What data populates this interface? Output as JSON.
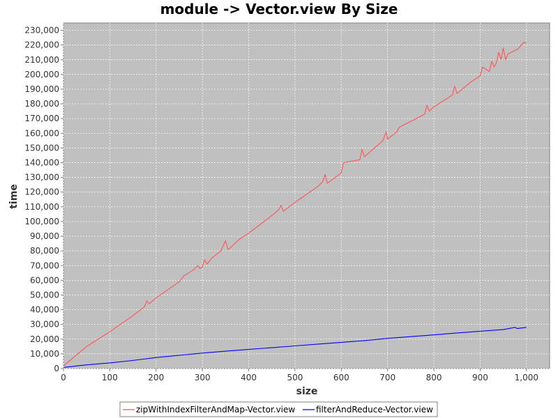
{
  "chart_data": {
    "type": "line",
    "title": "module -> Vector.view By Size",
    "xlabel": "size",
    "ylabel": "time",
    "xlim": [
      0,
      1050
    ],
    "ylim": [
      0,
      235000
    ],
    "x_ticks": [
      0,
      100,
      200,
      300,
      400,
      500,
      600,
      700,
      800,
      900,
      1000
    ],
    "x_tick_labels": [
      "0",
      "100",
      "200",
      "300",
      "400",
      "500",
      "600",
      "700",
      "800",
      "900",
      "1,000"
    ],
    "y_ticks": [
      0,
      10000,
      20000,
      30000,
      40000,
      50000,
      60000,
      70000,
      80000,
      90000,
      100000,
      110000,
      120000,
      130000,
      140000,
      150000,
      160000,
      170000,
      180000,
      190000,
      200000,
      210000,
      220000,
      230000
    ],
    "y_tick_labels": [
      "0",
      "10,000",
      "20,000",
      "30,000",
      "40,000",
      "50,000",
      "60,000",
      "70,000",
      "80,000",
      "90,000",
      "100,000",
      "110,000",
      "120,000",
      "130,000",
      "140,000",
      "150,000",
      "160,000",
      "170,000",
      "180,000",
      "190,000",
      "200,000",
      "210,000",
      "220,000",
      "230,000"
    ],
    "grid": true,
    "legend_position": "bottom",
    "plot_background": "#c0c0c0",
    "series": [
      {
        "name": "zipWithIndexFilterAndMap-Vector.view",
        "color": "#ff5555",
        "x": [
          1,
          50,
          100,
          150,
          175,
          180,
          185,
          200,
          250,
          260,
          270,
          280,
          290,
          295,
          300,
          305,
          310,
          320,
          340,
          350,
          355,
          360,
          380,
          400,
          450,
          465,
          470,
          475,
          500,
          550,
          560,
          565,
          570,
          600,
          605,
          640,
          645,
          650,
          690,
          697,
          700,
          720,
          725,
          780,
          785,
          790,
          800,
          840,
          845,
          850,
          880,
          900,
          905,
          920,
          925,
          930,
          935,
          940,
          945,
          950,
          955,
          960,
          980,
          995,
          1000
        ],
        "y": [
          2000,
          15000,
          25000,
          36000,
          42000,
          46000,
          44000,
          48000,
          59000,
          63000,
          65000,
          67000,
          70000,
          68000,
          69000,
          74000,
          71000,
          75000,
          80000,
          87000,
          81000,
          82000,
          88000,
          92000,
          104000,
          108000,
          111000,
          107000,
          113000,
          124000,
          127000,
          132000,
          126000,
          133000,
          140000,
          142000,
          149000,
          144000,
          155000,
          161000,
          156000,
          161000,
          164000,
          173000,
          179000,
          175000,
          178000,
          186000,
          192000,
          187000,
          195000,
          199000,
          205000,
          202000,
          209000,
          205000,
          208000,
          215000,
          210000,
          218000,
          210000,
          214000,
          217000,
          222000,
          221000
        ]
      },
      {
        "name": "filterAndReduce-Vector.view",
        "color": "#0000ff",
        "x": [
          1,
          50,
          100,
          150,
          200,
          250,
          300,
          350,
          400,
          450,
          500,
          550,
          600,
          650,
          700,
          750,
          800,
          850,
          900,
          950,
          975,
          980,
          1000
        ],
        "y": [
          800,
          2500,
          3800,
          5500,
          7500,
          9000,
          10500,
          11800,
          13000,
          14200,
          15400,
          16600,
          17800,
          19000,
          20500,
          21700,
          22900,
          24200,
          25400,
          26500,
          28000,
          27200,
          28000
        ]
      }
    ]
  }
}
